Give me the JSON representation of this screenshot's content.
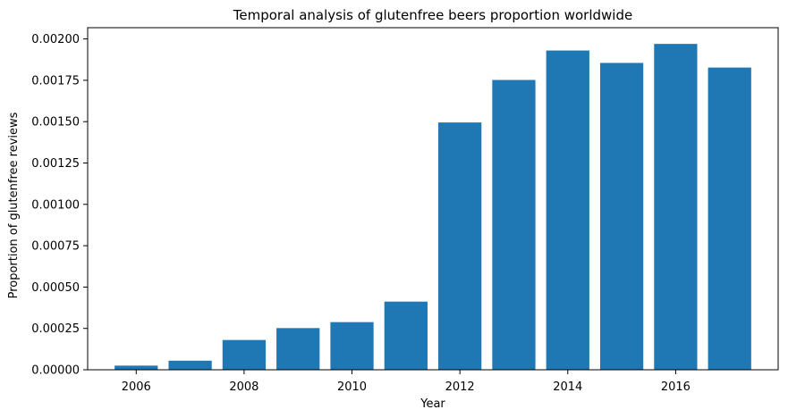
{
  "chart_data": {
    "type": "bar",
    "title": "Temporal analysis of glutenfree beers proportion worldwide",
    "xlabel": "Year",
    "ylabel": "Proportion of glutenfree reviews",
    "x": [
      2006,
      2007,
      2008,
      2009,
      2010,
      2011,
      2012,
      2013,
      2014,
      2015,
      2016,
      2017
    ],
    "values": [
      2.5e-05,
      5.5e-05,
      0.00018,
      0.000252,
      0.000288,
      0.000412,
      0.001495,
      0.001752,
      0.00193,
      0.001855,
      0.00197,
      0.001827
    ],
    "xlim": [
      2005.1,
      2017.9
    ],
    "ylim": [
      0,
      0.002068
    ],
    "xticks": [
      2006,
      2008,
      2010,
      2012,
      2014,
      2016
    ],
    "xtick_labels": [
      "2006",
      "2008",
      "2010",
      "2012",
      "2014",
      "2016"
    ],
    "yticks": [
      0,
      0.00025,
      0.0005,
      0.00075,
      0.001,
      0.00125,
      0.0015,
      0.00175,
      0.002
    ],
    "ytick_labels": [
      "0.00000",
      "0.00025",
      "0.00050",
      "0.00075",
      "0.00100",
      "0.00125",
      "0.00150",
      "0.00175",
      "0.00200"
    ],
    "bar_width": 0.8,
    "bar_color": "#1f77b4",
    "grid": false,
    "legend": "none"
  }
}
